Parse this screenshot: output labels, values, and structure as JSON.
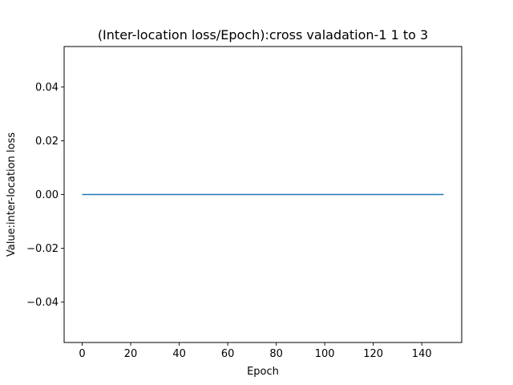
{
  "chart_data": {
    "type": "line",
    "title": "(Inter-location loss/Epoch):cross valadation-1 1 to 3",
    "xlabel": "Epoch",
    "ylabel": "Value:inter-location loss",
    "xlim": [
      -7.45,
      156.45
    ],
    "ylim": [
      -0.055,
      0.055
    ],
    "x_ticks": [
      0,
      20,
      40,
      60,
      80,
      100,
      120,
      140
    ],
    "x_tick_labels": [
      "0",
      "20",
      "40",
      "60",
      "80",
      "100",
      "120",
      "140"
    ],
    "y_ticks": [
      -0.04,
      -0.02,
      0.0,
      0.02,
      0.04
    ],
    "y_tick_labels": [
      "−0.04",
      "−0.02",
      "0.00",
      "0.02",
      "0.04"
    ],
    "grid": false,
    "series": [
      {
        "color": "#1f77b4",
        "x_start": 0,
        "x_end": 149,
        "x_step": 1,
        "value": 0.0
      }
    ]
  }
}
